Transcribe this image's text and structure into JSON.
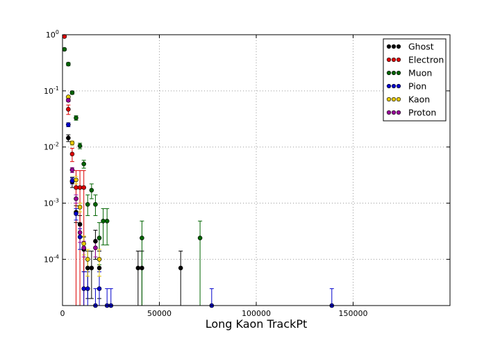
{
  "chart_data": {
    "type": "scatter",
    "title": "",
    "xlabel": "Long Kaon TrackPt",
    "ylabel": "",
    "xlim": [
      0,
      200000
    ],
    "ylim": [
      1.5e-05,
      1.0
    ],
    "yscale": "log",
    "grid": true,
    "legend_position": "top-right",
    "x_ticks": [
      0,
      50000,
      100000,
      150000
    ],
    "x_tick_labels": [
      "0",
      "50000",
      "100000",
      "150000"
    ],
    "y_ticks": [
      0.0001,
      0.001,
      0.01,
      0.1,
      1
    ],
    "y_tick_labels": [
      {
        "base": "10",
        "exp": "-4"
      },
      {
        "base": "10",
        "exp": "-3"
      },
      {
        "base": "10",
        "exp": "-2"
      },
      {
        "base": "10",
        "exp": "-1"
      },
      {
        "base": "10",
        "exp": "0"
      }
    ],
    "series": [
      {
        "name": "Ghost",
        "color": "#000000",
        "points": [
          {
            "x": 3000,
            "y": 0.0145,
            "lo": 0.0125,
            "hi": 0.0165
          },
          {
            "x": 5000,
            "y": 0.0024,
            "lo": 0.0019,
            "hi": 0.0029
          },
          {
            "x": 7000,
            "y": 0.00069,
            "lo": 0.00045,
            "hi": 0.0009
          },
          {
            "x": 9000,
            "y": 0.00042,
            "lo": 0.00025,
            "hi": 0.0006
          },
          {
            "x": 11000,
            "y": 0.00015,
            "lo": 6e-05,
            "hi": 0.00025
          },
          {
            "x": 13000,
            "y": 7e-05,
            "lo": 2e-05,
            "hi": 0.00014
          },
          {
            "x": 15000,
            "y": 7e-05,
            "lo": 2e-05,
            "hi": 0.00014
          },
          {
            "x": 17000,
            "y": 0.00021,
            "lo": 0.0001,
            "hi": 0.00033
          },
          {
            "x": 19000,
            "y": 7e-05,
            "lo": 2e-05,
            "hi": 0.00014
          },
          {
            "x": 39000,
            "y": 7e-05,
            "lo": 1e-05,
            "hi": 0.00014
          },
          {
            "x": 41000,
            "y": 7e-05,
            "lo": 1e-05,
            "hi": 0.00014
          },
          {
            "x": 61000,
            "y": 7e-05,
            "lo": 1e-05,
            "hi": 0.00014
          }
        ]
      },
      {
        "name": "Electron",
        "color": "#dd0000",
        "points": [
          {
            "x": 1000,
            "y": 0.93,
            "lo": 0.9,
            "hi": 0.96
          },
          {
            "x": 3000,
            "y": 0.047,
            "lo": 0.038,
            "hi": 0.056
          },
          {
            "x": 5000,
            "y": 0.0075,
            "lo": 0.0055,
            "hi": 0.0095
          },
          {
            "x": 7000,
            "y": 0.0019,
            "lo": 1e-05,
            "hi": 0.0038
          },
          {
            "x": 9000,
            "y": 0.0019,
            "lo": 1e-05,
            "hi": 0.0038
          },
          {
            "x": 11000,
            "y": 0.0019,
            "lo": 1e-05,
            "hi": 0.0038
          }
        ]
      },
      {
        "name": "Muon",
        "color": "#006400",
        "points": [
          {
            "x": 1000,
            "y": 0.55,
            "lo": 0.53,
            "hi": 0.57
          },
          {
            "x": 3000,
            "y": 0.3,
            "lo": 0.28,
            "hi": 0.32
          },
          {
            "x": 5000,
            "y": 0.093,
            "lo": 0.087,
            "hi": 0.099
          },
          {
            "x": 7000,
            "y": 0.033,
            "lo": 0.03,
            "hi": 0.036
          },
          {
            "x": 9000,
            "y": 0.0105,
            "lo": 0.0093,
            "hi": 0.0117
          },
          {
            "x": 11000,
            "y": 0.005,
            "lo": 0.0042,
            "hi": 0.0058
          },
          {
            "x": 13000,
            "y": 0.00095,
            "lo": 0.0006,
            "hi": 0.0014
          },
          {
            "x": 15000,
            "y": 0.0017,
            "lo": 0.0012,
            "hi": 0.0022
          },
          {
            "x": 17000,
            "y": 0.00095,
            "lo": 0.0006,
            "hi": 0.0014
          },
          {
            "x": 19000,
            "y": 0.00024,
            "lo": 8e-05,
            "hi": 0.00045
          },
          {
            "x": 21000,
            "y": 0.00048,
            "lo": 0.00018,
            "hi": 0.0008
          },
          {
            "x": 23000,
            "y": 0.00048,
            "lo": 0.00018,
            "hi": 0.0008
          },
          {
            "x": 41000,
            "y": 0.00024,
            "lo": 1e-05,
            "hi": 0.00048
          },
          {
            "x": 71000,
            "y": 0.00024,
            "lo": 1e-05,
            "hi": 0.00048
          }
        ]
      },
      {
        "name": "Pion",
        "color": "#0000cc",
        "points": [
          {
            "x": 3000,
            "y": 0.025,
            "lo": 0.023,
            "hi": 0.027
          },
          {
            "x": 5000,
            "y": 0.0025,
            "lo": 0.0022,
            "hi": 0.0028
          },
          {
            "x": 7000,
            "y": 0.00065,
            "lo": 0.0005,
            "hi": 0.0008
          },
          {
            "x": 9000,
            "y": 0.00025,
            "lo": 0.00015,
            "hi": 0.00035
          },
          {
            "x": 11000,
            "y": 3e-05,
            "lo": 1e-05,
            "hi": 6e-05
          },
          {
            "x": 13000,
            "y": 3e-05,
            "lo": 1e-05,
            "hi": 6e-05
          },
          {
            "x": 17000,
            "y": 1.5e-05,
            "lo": 1e-05,
            "hi": 3e-05
          },
          {
            "x": 19000,
            "y": 3e-05,
            "lo": 1e-05,
            "hi": 6e-05
          },
          {
            "x": 23000,
            "y": 1.5e-05,
            "lo": 1e-05,
            "hi": 3e-05
          },
          {
            "x": 25000,
            "y": 1.5e-05,
            "lo": 1e-05,
            "hi": 3e-05
          },
          {
            "x": 77000,
            "y": 1.5e-05,
            "lo": 1e-05,
            "hi": 3e-05
          },
          {
            "x": 139000,
            "y": 1.5e-05,
            "lo": 1e-05,
            "hi": 3e-05
          }
        ]
      },
      {
        "name": "Kaon",
        "color": "#e6c800",
        "points": [
          {
            "x": 3000,
            "y": 0.078,
            "lo": 0.075,
            "hi": 0.081
          },
          {
            "x": 5000,
            "y": 0.0118,
            "lo": 0.0108,
            "hi": 0.0128
          },
          {
            "x": 7000,
            "y": 0.0026,
            "lo": 0.0022,
            "hi": 0.003
          },
          {
            "x": 9000,
            "y": 0.00085,
            "lo": 0.0007,
            "hi": 0.001
          },
          {
            "x": 11000,
            "y": 0.00019,
            "lo": 0.00012,
            "hi": 0.00026
          },
          {
            "x": 13000,
            "y": 0.0001,
            "lo": 5e-05,
            "hi": 0.00015
          },
          {
            "x": 19000,
            "y": 0.0001,
            "lo": 5e-05,
            "hi": 0.00015
          }
        ]
      },
      {
        "name": "Proton",
        "color": "#990099",
        "points": [
          {
            "x": 3000,
            "y": 0.068,
            "lo": 0.064,
            "hi": 0.072
          },
          {
            "x": 5000,
            "y": 0.0039,
            "lo": 0.0035,
            "hi": 0.0043
          },
          {
            "x": 7000,
            "y": 0.0012,
            "lo": 0.001,
            "hi": 0.0014
          },
          {
            "x": 9000,
            "y": 0.0003,
            "lo": 0.0002,
            "hi": 0.0004
          },
          {
            "x": 11000,
            "y": 0.00016,
            "lo": 0.00011,
            "hi": 0.00021
          },
          {
            "x": 17000,
            "y": 0.00016,
            "lo": 0.00011,
            "hi": 0.00021
          }
        ]
      }
    ]
  }
}
